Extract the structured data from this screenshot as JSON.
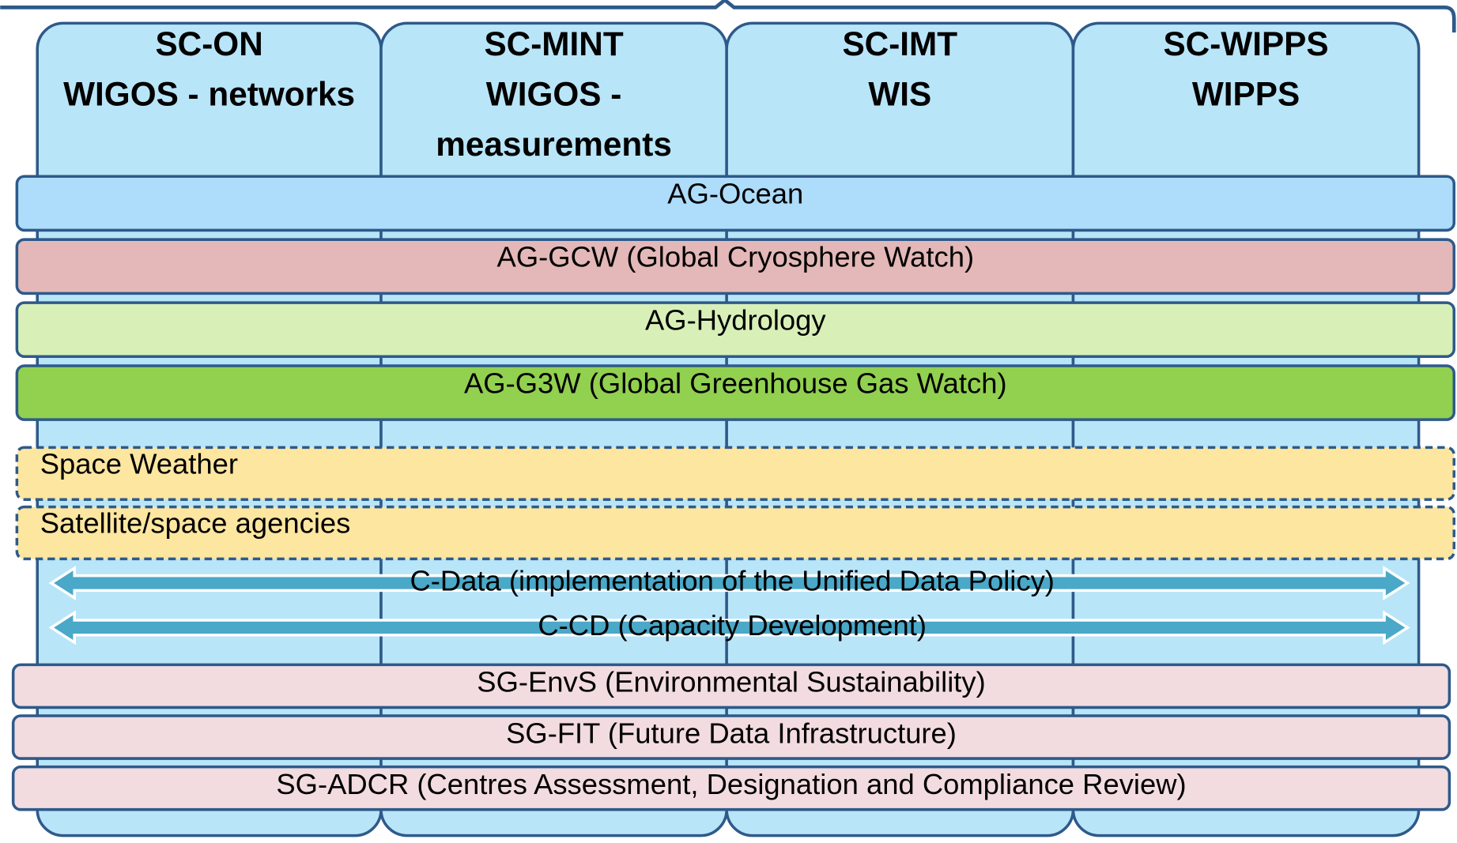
{
  "columns": [
    {
      "lines": [
        "SC-ON",
        "WIGOS - networks"
      ]
    },
    {
      "lines": [
        "SC-MINT",
        "WIGOS -",
        "measurements"
      ]
    },
    {
      "lines": [
        "SC-IMT",
        "WIS"
      ]
    },
    {
      "lines": [
        "SC-WIPPS",
        "WIPPS"
      ]
    }
  ],
  "groups": [
    {
      "label": "AG-Ocean"
    },
    {
      "label": "AG-GCW (Global Cryosphere Watch)"
    },
    {
      "label": "AG-Hydrology"
    },
    {
      "label": "AG-G3W (Global Greenhouse Gas Watch)"
    },
    {
      "label": "Space Weather"
    },
    {
      "label": "Satellite/space agencies"
    },
    {
      "label": "C-Data (implementation of the Unified Data Policy)"
    },
    {
      "label": "C-CD (Capacity Development)"
    },
    {
      "label": "SG-EnvS (Environmental Sustainability)"
    },
    {
      "label": "SG-FIT (Future Data Infrastructure)"
    },
    {
      "label": "SG-ADCR (Centres Assessment, Designation and Compliance Review)"
    }
  ]
}
